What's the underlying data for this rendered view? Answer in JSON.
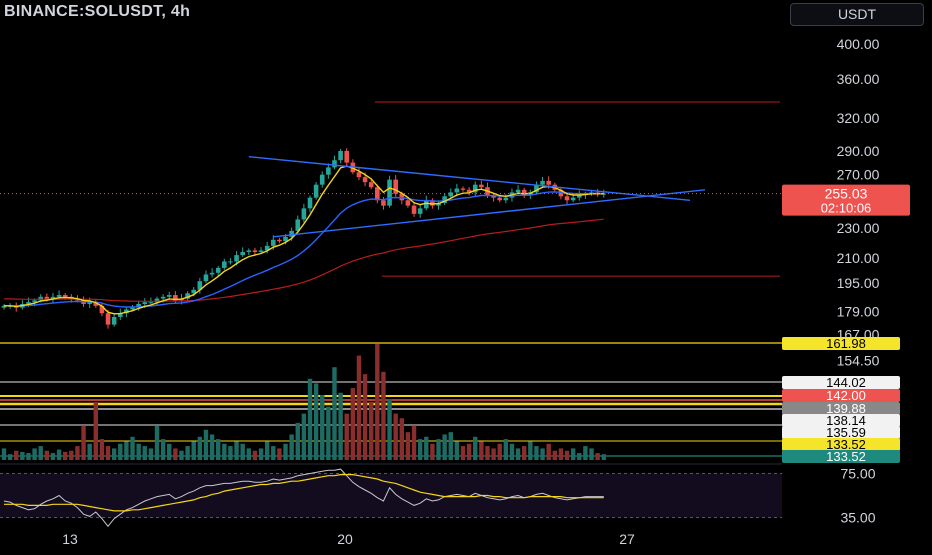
{
  "header": {
    "symbol": "BINANCE:SOLUSDT, 4h",
    "currency": "USDT"
  },
  "colors": {
    "background": "#000000",
    "up": "#26a69a",
    "down": "#ef5350",
    "ema_fast": "#f5d515",
    "ema_mid": "#2962ff",
    "ema_slow": "#b71c1c",
    "trendline": "#2f6bff",
    "resistance": "#b71c1c",
    "rsi": "#c8c8d0",
    "rsi_ma": "#f5d515",
    "lower_yellow": "#f5d515",
    "lower_red": "#ef5350",
    "lower_white": "#e6e6e6"
  },
  "chart_data": {
    "type": "candlestick",
    "symbol": "BINANCE:SOLUSDT",
    "interval": "4h",
    "price_axis": {
      "ticks": [
        400,
        360,
        320,
        290,
        270,
        230,
        210,
        195,
        179,
        167,
        154.5
      ],
      "tick_labels": [
        "400.00",
        "360.00",
        "320.00",
        "290.00",
        "270.00",
        "230.00",
        "210.00",
        "195.00",
        "179.00",
        "167.00",
        "154.50"
      ],
      "scale": "log"
    },
    "time_axis": {
      "tick_labels": [
        "13",
        "20",
        "27"
      ]
    },
    "last_price": {
      "price": "255.03",
      "countdown": "02:10:06"
    },
    "price_tags": [
      {
        "label": "161.98",
        "color": "yellow"
      },
      {
        "label": "144.02",
        "color": "white"
      },
      {
        "label": "142.00",
        "color": "red"
      },
      {
        "label": "139.88",
        "color": "gray"
      },
      {
        "label": "138.14",
        "color": "white"
      },
      {
        "label": "135.59",
        "color": "white"
      },
      {
        "label": "133.52",
        "color": "yellow"
      },
      {
        "label": "133.52",
        "color": "teal"
      }
    ],
    "candles_close": [
      182,
      182,
      181,
      183,
      184,
      185,
      187,
      186,
      187,
      188,
      187,
      186,
      185,
      183,
      184,
      182,
      178,
      172,
      176,
      178,
      180,
      181,
      183,
      184,
      184,
      186,
      187,
      188,
      185,
      186,
      189,
      191,
      196,
      200,
      201,
      204,
      208,
      208,
      212,
      214,
      215,
      214,
      215,
      218,
      222,
      221,
      224,
      228,
      236,
      244,
      252,
      262,
      270,
      276,
      282,
      290,
      280,
      272,
      268,
      264,
      260,
      250,
      246,
      266,
      255,
      250,
      246,
      240,
      244,
      250,
      246,
      248,
      253,
      256,
      259,
      258,
      256,
      262,
      260,
      254,
      252,
      250,
      252,
      256,
      258,
      254,
      256,
      262,
      265,
      262,
      258,
      253,
      250,
      252,
      254,
      255,
      256,
      255,
      255
    ],
    "volume_relative": [
      0.1,
      0.05,
      0.08,
      0.07,
      0.06,
      0.1,
      0.12,
      0.08,
      0.06,
      0.09,
      0.07,
      0.08,
      0.12,
      0.3,
      0.14,
      0.5,
      0.18,
      0.12,
      0.1,
      0.14,
      0.16,
      0.2,
      0.14,
      0.12,
      0.1,
      0.3,
      0.18,
      0.14,
      0.1,
      0.08,
      0.12,
      0.16,
      0.2,
      0.26,
      0.22,
      0.18,
      0.14,
      0.12,
      0.16,
      0.14,
      0.1,
      0.08,
      0.1,
      0.16,
      0.12,
      0.1,
      0.14,
      0.22,
      0.32,
      0.4,
      0.7,
      0.66,
      0.56,
      0.46,
      0.8,
      0.58,
      0.4,
      0.62,
      0.9,
      0.74,
      0.5,
      1.0,
      0.76,
      0.52,
      0.4,
      0.36,
      0.24,
      0.3,
      0.18,
      0.2,
      0.14,
      0.18,
      0.22,
      0.24,
      0.16,
      0.12,
      0.14,
      0.2,
      0.16,
      0.12,
      0.1,
      0.14,
      0.18,
      0.14,
      0.1,
      0.12,
      0.16,
      0.12,
      0.1,
      0.14,
      0.08,
      0.1,
      0.08,
      0.1,
      0.06,
      0.12,
      0.1,
      0.06,
      0.05
    ],
    "ema_fast": "yellow moving average",
    "ema_mid": "blue moving average",
    "ema_slow": "red moving average",
    "rsi": {
      "tick_labels": [
        "75.00",
        "35.00"
      ],
      "values": [
        50,
        49,
        46,
        44,
        42,
        43,
        47,
        50,
        52,
        55,
        50,
        48,
        44,
        38,
        36,
        40,
        34,
        27,
        34,
        38,
        42,
        44,
        47,
        50,
        52,
        54,
        55,
        56,
        52,
        54,
        57,
        59,
        62,
        64,
        64,
        65,
        66,
        66,
        67,
        68,
        68,
        67,
        67,
        68,
        70,
        69,
        70,
        71,
        73,
        74,
        75,
        76,
        77,
        78,
        78,
        79,
        73,
        67,
        63,
        60,
        57,
        53,
        50,
        62,
        56,
        52,
        49,
        46,
        48,
        52,
        50,
        51,
        54,
        55,
        56,
        55,
        54,
        57,
        55,
        53,
        52,
        51,
        52,
        54,
        55,
        53,
        54,
        56,
        57,
        55,
        53,
        52,
        51,
        52,
        53,
        54,
        54,
        54,
        54
      ],
      "ma_values": [
        47,
        47,
        47,
        47,
        46,
        46,
        46,
        46,
        47,
        47,
        47,
        47,
        47,
        46,
        45,
        44,
        43,
        42,
        41,
        41,
        41,
        42,
        42,
        43,
        44,
        45,
        46,
        47,
        48,
        49,
        50,
        51,
        53,
        54,
        56,
        57,
        59,
        60,
        61,
        62,
        63,
        64,
        65,
        65,
        66,
        66,
        67,
        68,
        68,
        69,
        70,
        71,
        72,
        73,
        73,
        74,
        74,
        74,
        73,
        72,
        71,
        70,
        68,
        67,
        66,
        64,
        62,
        60,
        58,
        57,
        56,
        55,
        54,
        54,
        54,
        54,
        54,
        54,
        55,
        55,
        54,
        54,
        53,
        53,
        53,
        53,
        54,
        54,
        54,
        54,
        54,
        54,
        53,
        53,
        53,
        53,
        53,
        53,
        53
      ]
    }
  }
}
